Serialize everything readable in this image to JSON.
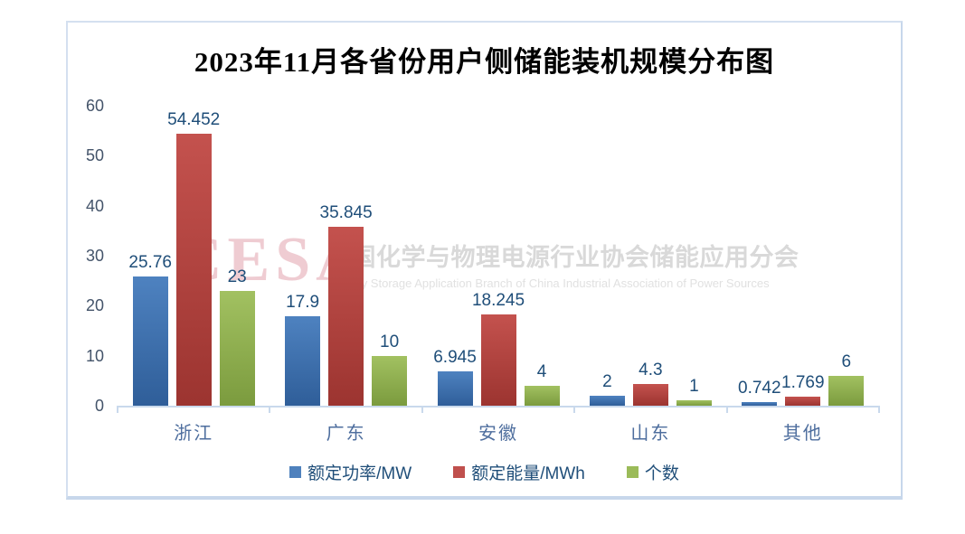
{
  "title": "2023年11月各省份用户侧储能装机规模分布图",
  "watermark": {
    "logo": "CESA",
    "cn": "中国化学与物理电源行业协会储能应用分会",
    "en": "Energy Storage Application Branch of China Industrial Association of Power Sources"
  },
  "chart_data": {
    "type": "bar",
    "title": "2023年11月各省份用户侧储能装机规模分布图",
    "categories": [
      "浙江",
      "广东",
      "安徽",
      "山东",
      "其他"
    ],
    "series": [
      {
        "name": "额定功率/MW",
        "color": "#4F81BD",
        "gradient_top": "#4E82C0",
        "gradient_bottom": "#2F5E99",
        "values": [
          25.76,
          17.9,
          6.945,
          2,
          0.742
        ]
      },
      {
        "name": "额定能量/MWh",
        "color": "#C0504D",
        "gradient_top": "#C4524E",
        "gradient_bottom": "#9C3430",
        "values": [
          54.452,
          35.845,
          18.245,
          4.3,
          1.769
        ]
      },
      {
        "name": "个数",
        "color": "#9BBB59",
        "gradient_top": "#A2C161",
        "gradient_bottom": "#7B9B3E",
        "values": [
          23,
          10,
          4,
          1,
          6
        ]
      }
    ],
    "xlabel": "",
    "ylabel": "",
    "ylim": [
      0,
      60
    ],
    "yticks": [
      0,
      10,
      20,
      30,
      40,
      50,
      60
    ],
    "grid": false,
    "legend_position": "bottom",
    "axis_color": "#C9D9EC",
    "data_label_color": "#1F4E79",
    "tick_label_color": "#44546A",
    "category_label_color": "#4E6E9E"
  }
}
